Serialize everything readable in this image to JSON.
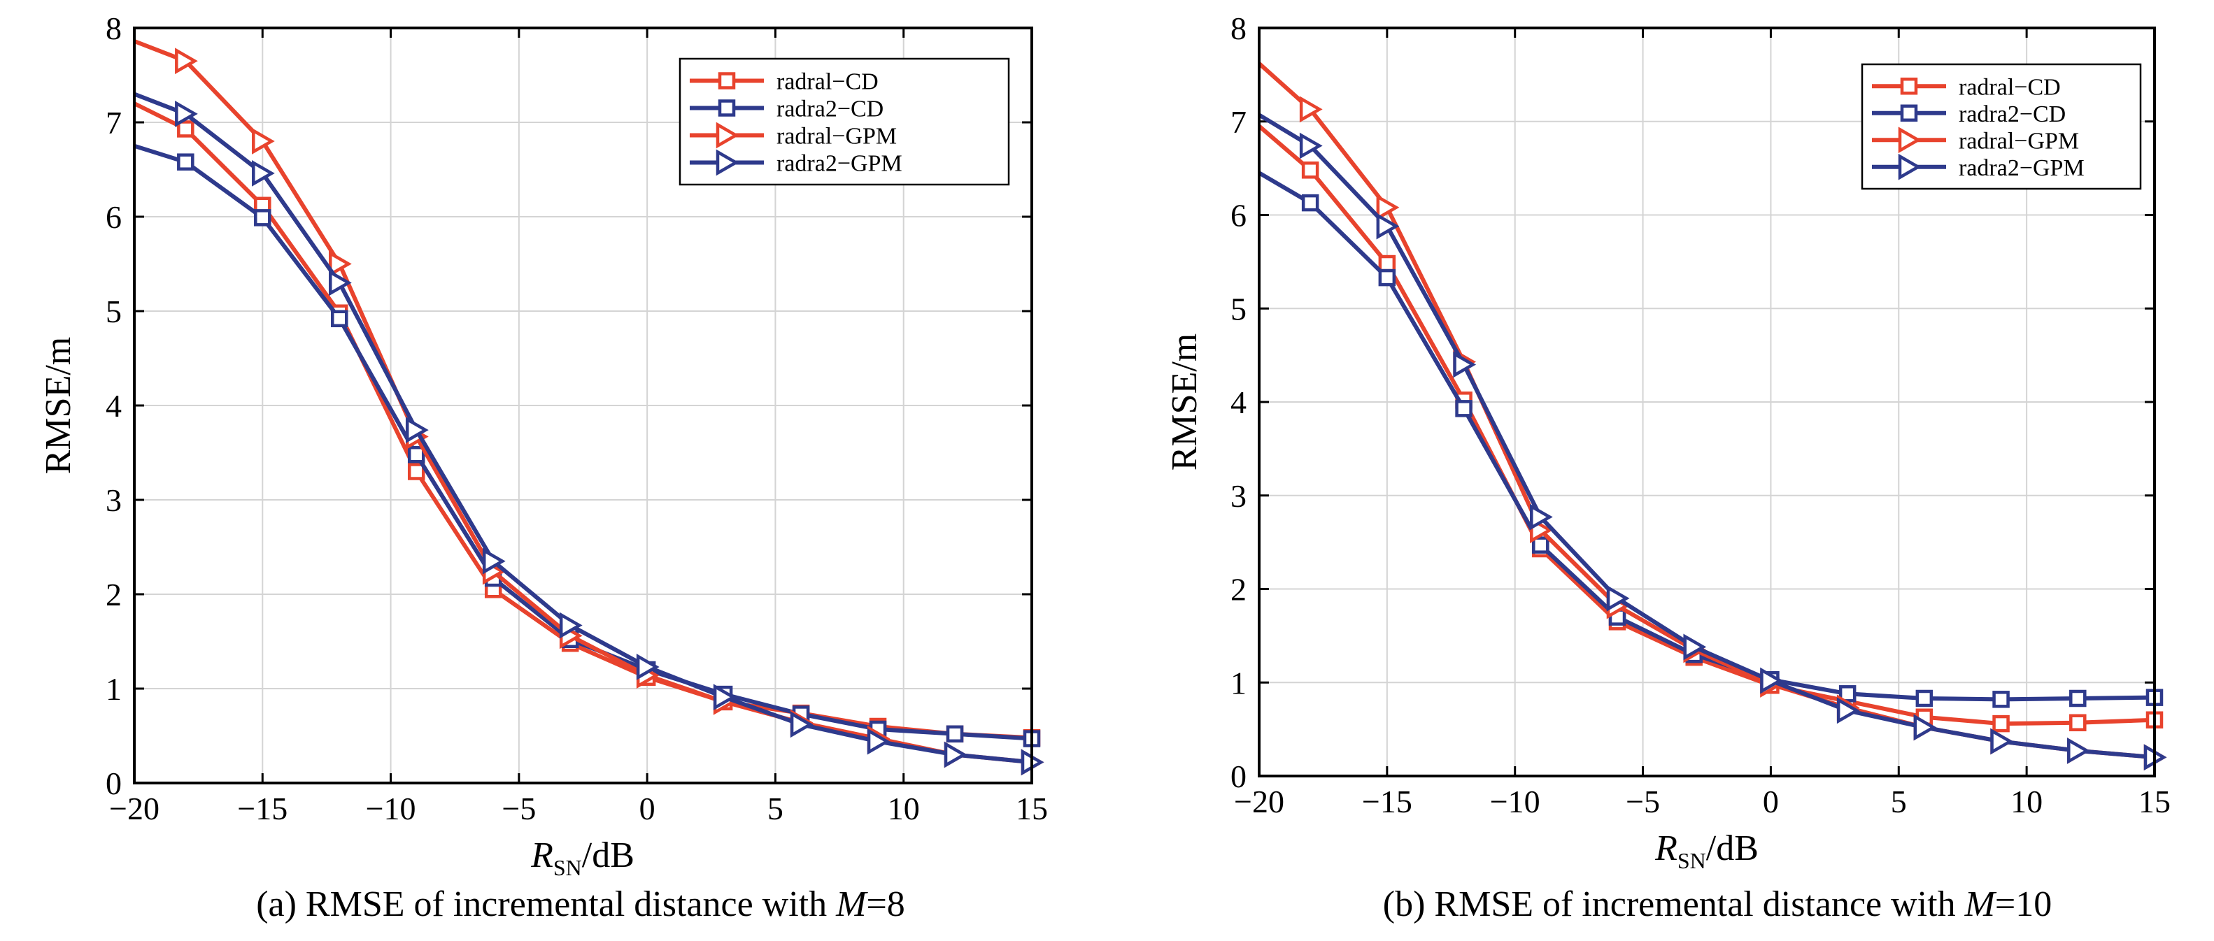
{
  "chart_data": [
    {
      "type": "line",
      "caption_parts": [
        "(a) RMSE of incremental distance with ",
        "M",
        "=8"
      ],
      "ylabel": "RMSE/m",
      "xlabel_parts": [
        "R",
        "SN",
        "/dB"
      ],
      "xlim": [
        -20,
        15
      ],
      "ylim": [
        0,
        8
      ],
      "xticks": [
        -20,
        -15,
        -10,
        -5,
        0,
        5,
        10,
        15
      ],
      "yticks": [
        0,
        1,
        2,
        3,
        4,
        5,
        6,
        7,
        8
      ],
      "xtick_labels": [
        "−20",
        "−15",
        "−10",
        "−5",
        "0",
        "5",
        "10",
        "15"
      ],
      "ytick_labels": [
        "0",
        "1",
        "2",
        "3",
        "4",
        "5",
        "6",
        "7",
        "8"
      ],
      "grid": true,
      "legend_position": "top-right",
      "x": [
        -20,
        -18,
        -15,
        -12,
        -9,
        -6,
        -3,
        0,
        3,
        6,
        9,
        12,
        15
      ],
      "series": [
        {
          "name": "radral−CD",
          "color": "#e8432d",
          "marker": "square",
          "values": [
            7.2,
            6.93,
            6.12,
            4.98,
            3.3,
            2.05,
            1.48,
            1.12,
            0.86,
            0.74,
            0.6,
            0.52,
            0.48
          ]
        },
        {
          "name": "radra2−CD",
          "color": "#2e3a8c",
          "marker": "square",
          "values": [
            6.75,
            6.58,
            5.99,
            4.92,
            3.48,
            2.17,
            1.52,
            1.2,
            0.94,
            0.73,
            0.57,
            0.52,
            0.47
          ]
        },
        {
          "name": "radral−GPM",
          "color": "#e8432d",
          "marker": "triangle-right",
          "values": [
            7.86,
            7.65,
            6.8,
            5.5,
            3.67,
            2.24,
            1.56,
            1.14,
            0.86,
            0.64,
            0.47,
            0.3,
            0.22
          ]
        },
        {
          "name": "radra2−GPM",
          "color": "#2e3a8c",
          "marker": "triangle-right",
          "values": [
            7.3,
            7.09,
            6.46,
            5.3,
            3.74,
            2.35,
            1.67,
            1.23,
            0.91,
            0.62,
            0.44,
            0.3,
            0.22
          ]
        }
      ]
    },
    {
      "type": "line",
      "caption_parts": [
        "(b) RMSE of incremental distance with ",
        "M",
        "=10"
      ],
      "ylabel": "RMSE/m",
      "xlabel_parts": [
        "R",
        "SN",
        "/dB"
      ],
      "xlim": [
        -20,
        15
      ],
      "ylim": [
        0,
        8
      ],
      "xticks": [
        -20,
        -15,
        -10,
        -5,
        0,
        5,
        10,
        15
      ],
      "yticks": [
        0,
        1,
        2,
        3,
        4,
        5,
        6,
        7,
        8
      ],
      "xtick_labels": [
        "−20",
        "−15",
        "−10",
        "−5",
        "0",
        "5",
        "10",
        "15"
      ],
      "ytick_labels": [
        "0",
        "1",
        "2",
        "3",
        "4",
        "5",
        "6",
        "7",
        "8"
      ],
      "grid": true,
      "legend_position": "top-right",
      "x": [
        -20,
        -18,
        -15,
        -12,
        -9,
        -6,
        -3,
        0,
        3,
        6,
        9,
        12,
        15
      ],
      "series": [
        {
          "name": "radral−CD",
          "color": "#e8432d",
          "marker": "square",
          "values": [
            6.95,
            6.48,
            5.48,
            4.02,
            2.43,
            1.65,
            1.27,
            0.97,
            0.8,
            0.63,
            0.56,
            0.57,
            0.6
          ]
        },
        {
          "name": "radra2−CD",
          "color": "#2e3a8c",
          "marker": "square",
          "values": [
            6.45,
            6.13,
            5.33,
            3.93,
            2.47,
            1.7,
            1.3,
            1.03,
            0.88,
            0.83,
            0.82,
            0.83,
            0.84
          ]
        },
        {
          "name": "radral−GPM",
          "color": "#e8432d",
          "marker": "triangle-right",
          "values": [
            7.62,
            7.13,
            6.08,
            4.43,
            2.63,
            1.82,
            1.35,
            0.98,
            0.73,
            0.52,
            0.37,
            0.27,
            0.2
          ]
        },
        {
          "name": "radra2−GPM",
          "color": "#2e3a8c",
          "marker": "triangle-right",
          "values": [
            7.07,
            6.74,
            5.88,
            4.4,
            2.77,
            1.9,
            1.38,
            1.02,
            0.7,
            0.52,
            0.37,
            0.27,
            0.2
          ]
        }
      ]
    }
  ]
}
